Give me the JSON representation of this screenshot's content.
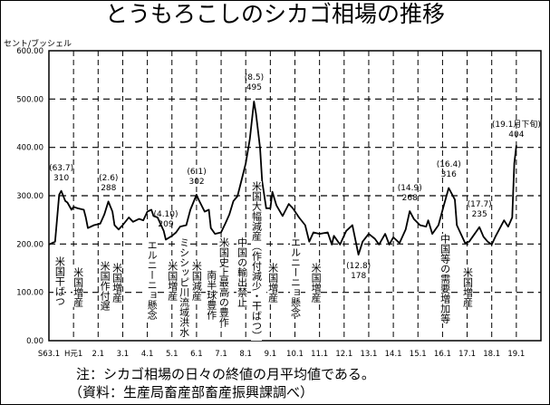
{
  "chart_data": {
    "type": "line",
    "title": "とうもろこしのシカゴ相場の推移",
    "ylabel": "セント/ブッシェル",
    "xlabel": "",
    "ylim": [
      0,
      600
    ],
    "xlim": [
      "1988-01",
      "2008-01"
    ],
    "grid": true,
    "y_ticks": [
      "0.00",
      "100.00",
      "200.00",
      "300.00",
      "400.00",
      "500.00",
      "600.00"
    ],
    "x_ticks": [
      {
        "label": "S63.1",
        "x": "1988-01"
      },
      {
        "label": "H元1",
        "x": "1989-01"
      },
      {
        "label": "2.1",
        "x": "1990-01"
      },
      {
        "label": "3.1",
        "x": "1991-01"
      },
      {
        "label": "4.1",
        "x": "1992-01"
      },
      {
        "label": "5.1",
        "x": "1993-01"
      },
      {
        "label": "6.1",
        "x": "1994-01"
      },
      {
        "label": "7.1",
        "x": "1995-01"
      },
      {
        "label": "8.1",
        "x": "1996-01"
      },
      {
        "label": "9.1",
        "x": "1997-01"
      },
      {
        "label": "10.1",
        "x": "1998-01"
      },
      {
        "label": "11.1",
        "x": "1999-01"
      },
      {
        "label": "12.1",
        "x": "2000-01"
      },
      {
        "label": "13.1",
        "x": "2001-01"
      },
      {
        "label": "14.1",
        "x": "2002-01"
      },
      {
        "label": "15.1",
        "x": "2003-01"
      },
      {
        "label": "16.1",
        "x": "2004-01"
      },
      {
        "label": "17.1",
        "x": "2005-01"
      },
      {
        "label": "18.1",
        "x": "2006-01"
      },
      {
        "label": "19.1",
        "x": "2007-01"
      }
    ],
    "series": [
      {
        "points": [
          [
            "1988-01",
            199
          ],
          [
            "1988-04",
            205
          ],
          [
            "1988-06",
            302
          ],
          [
            "1988-07",
            310
          ],
          [
            "1988-09",
            289
          ],
          [
            "1988-10",
            286
          ],
          [
            "1988-12",
            271
          ],
          [
            "1989-01",
            277
          ],
          [
            "1989-03",
            274
          ],
          [
            "1989-06",
            271
          ],
          [
            "1989-07",
            255
          ],
          [
            "1989-08",
            233
          ],
          [
            "1989-11",
            239
          ],
          [
            "1990-02",
            242
          ],
          [
            "1990-04",
            261
          ],
          [
            "1990-06",
            288
          ],
          [
            "1990-08",
            267
          ],
          [
            "1990-09",
            239
          ],
          [
            "1990-11",
            230
          ],
          [
            "1991-01",
            239
          ],
          [
            "1991-04",
            255
          ],
          [
            "1991-06",
            246
          ],
          [
            "1991-09",
            252
          ],
          [
            "1991-11",
            249
          ],
          [
            "1992-01",
            267
          ],
          [
            "1992-03",
            271
          ],
          [
            "1992-04",
            258
          ],
          [
            "1992-06",
            255
          ],
          [
            "1992-09",
            227
          ],
          [
            "1992-10",
            209
          ],
          [
            "1993-01",
            217
          ],
          [
            "1993-03",
            224
          ],
          [
            "1993-05",
            236
          ],
          [
            "1993-08",
            239
          ],
          [
            "1993-10",
            271
          ],
          [
            "1994-01",
            302
          ],
          [
            "1994-02",
            292
          ],
          [
            "1994-05",
            267
          ],
          [
            "1994-07",
            271
          ],
          [
            "1994-08",
            233
          ],
          [
            "1994-10",
            221
          ],
          [
            "1995-01",
            224
          ],
          [
            "1995-03",
            242
          ],
          [
            "1995-05",
            261
          ],
          [
            "1995-07",
            289
          ],
          [
            "1995-09",
            299
          ],
          [
            "1995-11",
            333
          ],
          [
            "1996-01",
            367
          ],
          [
            "1996-03",
            417
          ],
          [
            "1996-05",
            495
          ],
          [
            "1996-06",
            470
          ],
          [
            "1996-08",
            399
          ],
          [
            "1996-09",
            330
          ],
          [
            "1996-11",
            274
          ],
          [
            "1997-01",
            274
          ],
          [
            "1997-02",
            308
          ],
          [
            "1997-04",
            280
          ],
          [
            "1997-07",
            258
          ],
          [
            "1997-10",
            283
          ],
          [
            "1997-12",
            274
          ],
          [
            "1998-03",
            255
          ],
          [
            "1998-06",
            239
          ],
          [
            "1998-08",
            205
          ],
          [
            "1998-10",
            224
          ],
          [
            "1999-01",
            221
          ],
          [
            "1999-05",
            224
          ],
          [
            "1999-07",
            199
          ],
          [
            "1999-08",
            217
          ],
          [
            "1999-11",
            199
          ],
          [
            "2000-02",
            227
          ],
          [
            "2000-05",
            239
          ],
          [
            "2000-08",
            178
          ],
          [
            "2000-10",
            205
          ],
          [
            "2001-01",
            221
          ],
          [
            "2001-04",
            211
          ],
          [
            "2001-06",
            199
          ],
          [
            "2001-09",
            221
          ],
          [
            "2001-11",
            199
          ],
          [
            "2002-01",
            214
          ],
          [
            "2002-04",
            202
          ],
          [
            "2002-07",
            230
          ],
          [
            "2002-09",
            268
          ],
          [
            "2002-11",
            252
          ],
          [
            "2003-02",
            239
          ],
          [
            "2003-05",
            236
          ],
          [
            "2003-06",
            249
          ],
          [
            "2003-08",
            221
          ],
          [
            "2003-11",
            239
          ],
          [
            "2004-02",
            286
          ],
          [
            "2004-04",
            316
          ],
          [
            "2004-07",
            292
          ],
          [
            "2004-08",
            239
          ],
          [
            "2004-12",
            202
          ],
          [
            "2005-02",
            205
          ],
          [
            "2005-04",
            217
          ],
          [
            "2005-07",
            235
          ],
          [
            "2005-09",
            215
          ],
          [
            "2005-11",
            205
          ],
          [
            "2006-01",
            199
          ],
          [
            "2006-03",
            217
          ],
          [
            "2006-07",
            249
          ],
          [
            "2006-09",
            236
          ],
          [
            "2006-11",
            255
          ],
          [
            "2006-12",
            367
          ],
          [
            "2007-01",
            404
          ]
        ]
      }
    ],
    "point_labels": [
      {
        "date": "(63.7)",
        "value": "310",
        "x": "1988-07"
      },
      {
        "date": "(2.6)",
        "value": "288",
        "x": "1990-06"
      },
      {
        "date": "(4.10)",
        "value": "209",
        "x": "1992-10"
      },
      {
        "date": "(6.1)",
        "value": "302",
        "x": "1994-01"
      },
      {
        "date": "(8.5)",
        "value": "495",
        "x": "1996-05"
      },
      {
        "date": "(12.8)",
        "value": "178",
        "x": "2000-08"
      },
      {
        "date": "(14.9)",
        "value": "268",
        "x": "2002-09"
      },
      {
        "date": "(16.4)",
        "value": "316",
        "x": "2004-04"
      },
      {
        "date": "(17.7)",
        "value": "235",
        "x": "2005-07"
      },
      {
        "date": "(19.1月下旬)",
        "value": "404",
        "x": "2007-01"
      }
    ],
    "annotations": [
      {
        "text": "米国干ばつ",
        "x": "1988-06"
      },
      {
        "text": "米国増産",
        "x": "1989-03"
      },
      {
        "text": "米国作付遅",
        "x": "1990-04"
      },
      {
        "text": "米国増産",
        "x": "1990-10"
      },
      {
        "text": "エルニーニョ懸念",
        "x": "1992-03"
      },
      {
        "text": "米国増産",
        "x": "1993-01"
      },
      {
        "text": "ミシシッピ川流域洪水",
        "x": "1993-08"
      },
      {
        "text": "米国減産",
        "x": "1993-11"
      },
      {
        "text": "南半球豊作",
        "x": "1994-08"
      },
      {
        "text": "米国史上最高の豊作",
        "x": "1995-02"
      },
      {
        "text": "中国の輸出禁止",
        "x": "1995-11"
      },
      {
        "text": "米国大幅減産（作付減少・干ばつ）",
        "x": "1996-06"
      },
      {
        "text": "米国増産",
        "x": "1997-02"
      },
      {
        "text": "エルニーニョ懸念",
        "x": "1998-01"
      },
      {
        "text": "米国増産",
        "x": "1998-11"
      },
      {
        "text": "中国等の需要増加等",
        "x": "2004-02"
      },
      {
        "text": "米国増産",
        "x": "2005-01"
      }
    ]
  },
  "notes": {
    "note": "注：シカゴ相場の日々の終値の月平均値である。",
    "source": "（資料：生産局畜産部畜産振興課調べ）"
  }
}
